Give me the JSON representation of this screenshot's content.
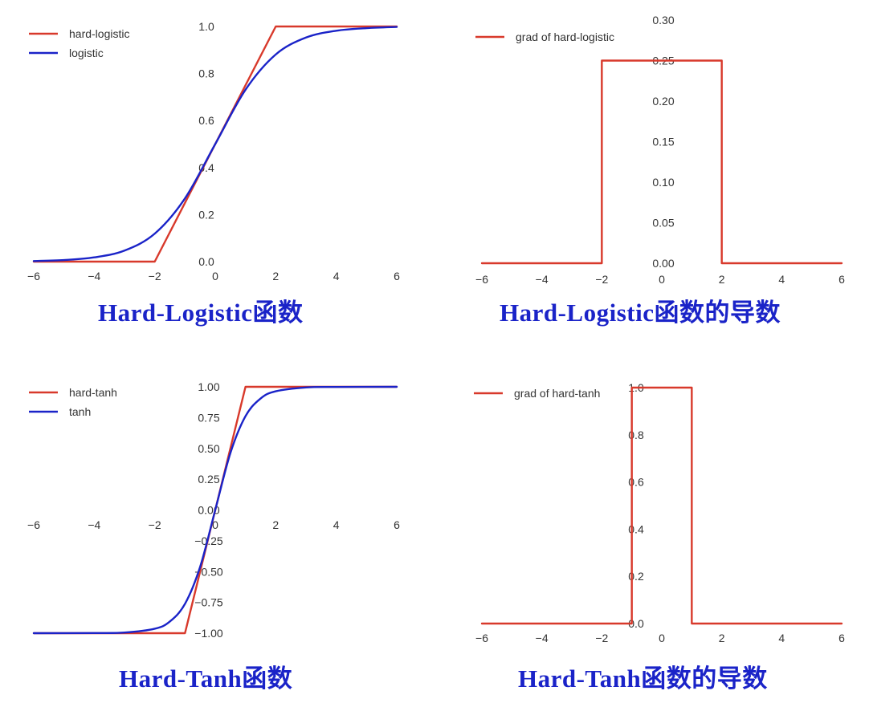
{
  "colors": {
    "red": "#d8392b",
    "blue": "#1a23c8",
    "caption": "#1a23c8",
    "axis_text": "#333333"
  },
  "captions": [
    "Hard-Logistic函数",
    "Hard-Logistic函数的导数",
    "Hard-Tanh函数",
    "Hard-Tanh函数的导数"
  ],
  "chart_data": [
    {
      "type": "line",
      "title": "",
      "xlabel": "",
      "ylabel": "",
      "xlim": [
        -6,
        6
      ],
      "ylim": [
        0,
        1
      ],
      "xticks": [
        "−6",
        "−4",
        "−2",
        "0",
        "2",
        "4",
        "6"
      ],
      "yticks": [
        "0.0",
        "0.2",
        "0.4",
        "0.6",
        "0.8",
        "1.0"
      ],
      "legend_position": "top-left",
      "series": [
        {
          "name": "hard-logistic",
          "color": "#d8392b",
          "x": [
            -6,
            -2,
            2,
            6
          ],
          "y": [
            0,
            0,
            1,
            1
          ]
        },
        {
          "name": "logistic",
          "color": "#1a23c8",
          "x": [
            -6,
            -5,
            -4,
            -3,
            -2,
            -1,
            0,
            1,
            2,
            3,
            4,
            5,
            6
          ],
          "y": [
            0.0025,
            0.0067,
            0.018,
            0.047,
            0.119,
            0.269,
            0.5,
            0.731,
            0.881,
            0.953,
            0.982,
            0.993,
            0.998
          ]
        }
      ]
    },
    {
      "type": "line",
      "title": "",
      "xlabel": "",
      "ylabel": "",
      "xlim": [
        -6,
        6
      ],
      "ylim": [
        0,
        0.3
      ],
      "xticks": [
        "−6",
        "−4",
        "−2",
        "0",
        "2",
        "4",
        "6"
      ],
      "yticks": [
        "0.00",
        "0.05",
        "0.10",
        "0.15",
        "0.20",
        "0.25",
        "0.30"
      ],
      "legend_position": "top-left",
      "series": [
        {
          "name": "grad of hard-logistic",
          "color": "#d8392b",
          "x": [
            -6,
            -2,
            -2,
            2,
            2,
            6
          ],
          "y": [
            0,
            0,
            0.25,
            0.25,
            0,
            0
          ]
        }
      ]
    },
    {
      "type": "line",
      "title": "",
      "xlabel": "",
      "ylabel": "",
      "xlim": [
        -6,
        6
      ],
      "ylim": [
        -1,
        1
      ],
      "xticks": [
        "−6",
        "−4",
        "−2",
        "0",
        "2",
        "4",
        "6"
      ],
      "yticks": [
        "−1.00",
        "−0.75",
        "−0.50",
        "−0.25",
        "0.00",
        "0.25",
        "0.50",
        "0.75",
        "1.00"
      ],
      "legend_position": "top-left",
      "series": [
        {
          "name": "hard-tanh",
          "color": "#d8392b",
          "x": [
            -6,
            -1,
            1,
            6
          ],
          "y": [
            -1,
            -1,
            1,
            1
          ]
        },
        {
          "name": "tanh",
          "color": "#1a23c8",
          "x": [
            -6,
            -4,
            -3,
            -2,
            -1.5,
            -1,
            -0.5,
            0,
            0.5,
            1,
            1.5,
            2,
            3,
            4,
            6
          ],
          "y": [
            -1,
            -0.999,
            -0.995,
            -0.964,
            -0.905,
            -0.762,
            -0.462,
            0,
            0.462,
            0.762,
            0.905,
            0.964,
            0.995,
            0.999,
            1
          ]
        }
      ]
    },
    {
      "type": "line",
      "title": "",
      "xlabel": "",
      "ylabel": "",
      "xlim": [
        -6,
        6
      ],
      "ylim": [
        0,
        1
      ],
      "xticks": [
        "−6",
        "−4",
        "−2",
        "0",
        "2",
        "4",
        "6"
      ],
      "yticks": [
        "0.0",
        "0.2",
        "0.4",
        "0.6",
        "0.8",
        "1.0"
      ],
      "legend_position": "top-left",
      "series": [
        {
          "name": "grad of hard-tanh",
          "color": "#d8392b",
          "x": [
            -6,
            -1,
            -1,
            1,
            1,
            6
          ],
          "y": [
            0,
            0,
            1,
            1,
            0,
            0
          ]
        }
      ]
    }
  ]
}
